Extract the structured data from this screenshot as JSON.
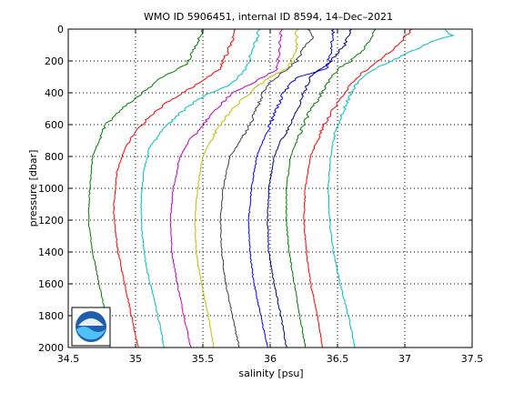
{
  "chart_data": {
    "type": "line",
    "title": "WMO ID 5906451, internal ID 8594, 14–Dec–2021",
    "xlabel": "salinity [psu]",
    "ylabel": "pressure [dbar]",
    "xlim": [
      34.5,
      37.5
    ],
    "ylim": [
      2000,
      0
    ],
    "y_reversed": true,
    "grid": true,
    "grid_style": "dotted",
    "xticks": [
      34.5,
      35,
      35.5,
      36,
      36.5,
      37,
      37.5
    ],
    "xtick_labels": [
      "34.5",
      "35",
      "35.5",
      "36",
      "36.5",
      "37",
      "37.5"
    ],
    "yticks": [
      0,
      200,
      400,
      600,
      800,
      1000,
      1200,
      1400,
      1600,
      1800,
      2000
    ],
    "ytick_labels": [
      "0",
      "200",
      "400",
      "600",
      "800",
      "1000",
      "1200",
      "1400",
      "1600",
      "1800",
      "2000"
    ],
    "logo": "NOAA",
    "series": [
      {
        "color": "#007f00",
        "pressure": [
          0,
          60,
          150,
          220,
          300,
          400,
          500,
          600,
          700,
          800,
          1000,
          1200,
          1400,
          1600,
          1800,
          2000
        ],
        "salinity": [
          35.5,
          35.47,
          35.42,
          35.38,
          35.2,
          35.05,
          34.9,
          34.78,
          34.73,
          34.68,
          34.66,
          34.65,
          34.68,
          34.73,
          34.78,
          34.81
        ]
      },
      {
        "color": "#ff0000",
        "pressure": [
          0,
          60,
          150,
          250,
          350,
          450,
          550,
          650,
          750,
          900,
          1100,
          1200,
          1400,
          1600,
          1800,
          2000
        ],
        "salinity": [
          35.74,
          35.72,
          35.68,
          35.62,
          35.45,
          35.25,
          35.1,
          35.0,
          34.92,
          34.86,
          34.84,
          34.84,
          34.87,
          34.92,
          34.97,
          35.02
        ]
      },
      {
        "color": "#00bfbf",
        "pressure": [
          0,
          60,
          150,
          250,
          350,
          400,
          450,
          550,
          650,
          750,
          900,
          1100,
          1300,
          1500,
          1700,
          1900,
          2000
        ],
        "salinity": [
          35.92,
          35.9,
          35.86,
          35.82,
          35.7,
          35.55,
          35.45,
          35.3,
          35.18,
          35.1,
          35.06,
          35.04,
          35.05,
          35.08,
          35.14,
          35.19,
          35.21
        ]
      },
      {
        "color": "#bf00bf",
        "pressure": [
          0,
          100,
          250,
          350,
          400,
          500,
          600,
          700,
          800,
          1000,
          1200,
          1400,
          1600,
          1800,
          2000
        ],
        "salinity": [
          36.08,
          36.07,
          36.05,
          35.85,
          35.72,
          35.6,
          35.5,
          35.4,
          35.33,
          35.28,
          35.26,
          35.27,
          35.31,
          35.36,
          35.41
        ]
      },
      {
        "color": "#bfbf00",
        "pressure": [
          0,
          150,
          250,
          300,
          350,
          400,
          450,
          500,
          600,
          700,
          800,
          1000,
          1200,
          1400,
          1600,
          1800,
          2000
        ],
        "salinity": [
          36.2,
          36.19,
          36.12,
          36.0,
          35.92,
          35.85,
          35.78,
          35.72,
          35.63,
          35.56,
          35.5,
          35.46,
          35.44,
          35.45,
          35.49,
          35.54,
          35.58
        ]
      },
      {
        "color": "#404040",
        "pressure": [
          0,
          50,
          100,
          200,
          300,
          350,
          400,
          500,
          600,
          700,
          800,
          1000,
          1200,
          1400,
          1600,
          1800,
          2000
        ],
        "salinity": [
          36.28,
          36.32,
          36.26,
          36.2,
          36.05,
          35.98,
          35.95,
          35.9,
          35.85,
          35.78,
          35.7,
          35.65,
          35.63,
          35.64,
          35.67,
          35.72,
          35.77
        ]
      },
      {
        "color": "#0000ff",
        "pressure": [
          0,
          50,
          150,
          250,
          300,
          400,
          500,
          600,
          700,
          800,
          1000,
          1200,
          1400,
          1600,
          1800,
          2000
        ],
        "salinity": [
          36.47,
          36.46,
          36.45,
          36.42,
          36.2,
          36.1,
          36.05,
          36.0,
          35.95,
          35.9,
          35.86,
          35.84,
          35.85,
          35.88,
          35.93,
          35.98
        ]
      },
      {
        "color": "#00007f",
        "pressure": [
          0,
          100,
          200,
          250,
          300,
          400,
          500,
          600,
          700,
          800,
          1000,
          1200,
          1400,
          1600,
          1800,
          2000
        ],
        "salinity": [
          36.6,
          36.55,
          36.45,
          36.38,
          36.3,
          36.25,
          36.2,
          36.15,
          36.08,
          36.03,
          35.99,
          35.98,
          35.99,
          36.03,
          36.08,
          36.12
        ]
      },
      {
        "color": "#007f00",
        "pressure": [
          0,
          100,
          200,
          250,
          350,
          450,
          500,
          600,
          700,
          800,
          1000,
          1200,
          1400,
          1600,
          1800,
          2000
        ],
        "salinity": [
          36.78,
          36.72,
          36.6,
          36.5,
          36.42,
          36.35,
          36.3,
          36.25,
          36.2,
          36.15,
          36.12,
          36.12,
          36.14,
          36.18,
          36.22,
          36.26
        ]
      },
      {
        "color": "#ff0000",
        "pressure": [
          0,
          100,
          200,
          300,
          400,
          500,
          600,
          700,
          800,
          1000,
          1200,
          1400,
          1600,
          1800,
          2000
        ],
        "salinity": [
          37.05,
          36.95,
          36.8,
          36.65,
          36.55,
          36.47,
          36.4,
          36.35,
          36.3,
          36.26,
          36.25,
          36.27,
          36.3,
          36.35,
          36.39
        ]
      },
      {
        "color": "#00bfbf",
        "pressure": [
          0,
          40,
          80,
          140,
          200,
          250,
          300,
          400,
          500,
          600,
          700,
          800,
          1000,
          1200,
          1400,
          1600,
          1800,
          2000
        ],
        "salinity": [
          37.3,
          37.35,
          37.2,
          37.05,
          36.9,
          36.78,
          36.68,
          36.6,
          36.55,
          36.5,
          36.47,
          36.45,
          36.43,
          36.44,
          36.47,
          36.52,
          36.58,
          36.63
        ]
      }
    ]
  }
}
